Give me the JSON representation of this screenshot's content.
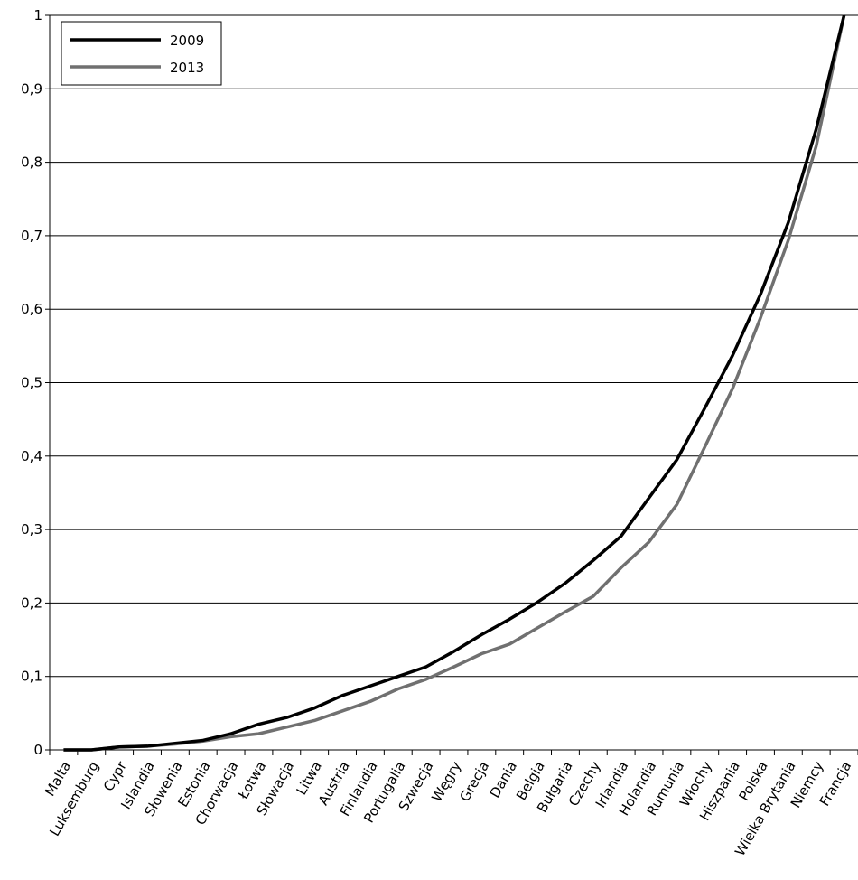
{
  "chart_data": {
    "type": "line",
    "categories": [
      "Malta",
      "Luksemburg",
      "Cypr",
      "Islandia",
      "Słowenia",
      "Estonia",
      "Chorwacja",
      "Łotwa",
      "Słowacja",
      "Litwa",
      "Austria",
      "Finlandia",
      "Portugalia",
      "Szwecja",
      "Węgry",
      "Grecja",
      "Dania",
      "Belgia",
      "Bułgaria",
      "Czechy",
      "Irlandia",
      "Holandia",
      "Rumunia",
      "Włochy",
      "Hiszpania",
      "Polska",
      "Wielka Brytania",
      "Niemcy",
      "Francja"
    ],
    "series": [
      {
        "name": "2009",
        "color": "#000000",
        "values": [
          0,
          0,
          0.004,
          0.005,
          0.009,
          0.013,
          0.022,
          0.035,
          0.044,
          0.057,
          0.074,
          0.087,
          0.1,
          0.113,
          0.134,
          0.157,
          0.178,
          0.201,
          0.227,
          0.258,
          0.291,
          0.343,
          0.395,
          0.465,
          0.537,
          0.62,
          0.718,
          0.845,
          1
        ]
      },
      {
        "name": "2013",
        "color": "#707070",
        "values": [
          0,
          0,
          0.004,
          0.005,
          0.008,
          0.012,
          0.018,
          0.022,
          0.031,
          0.04,
          0.053,
          0.066,
          0.083,
          0.096,
          0.113,
          0.131,
          0.144,
          0.166,
          0.188,
          0.209,
          0.248,
          0.283,
          0.334,
          0.412,
          0.492,
          0.588,
          0.694,
          0.822,
          1
        ]
      }
    ],
    "ylim": [
      0,
      1
    ],
    "yticks": [
      0,
      {
        "value": 0.1,
        "label": "0,1"
      },
      {
        "value": 0.2,
        "label": "0,2"
      },
      {
        "value": 0.3,
        "label": "0,3"
      },
      {
        "value": 0.4,
        "label": "0,4"
      },
      {
        "value": 0.5,
        "label": "0,5"
      },
      {
        "value": 0.6,
        "label": "0,6"
      },
      {
        "value": 0.7,
        "label": "0,7"
      },
      {
        "value": 0.8,
        "label": "0,8"
      },
      {
        "value": 0.9,
        "label": "0,9"
      },
      1
    ],
    "grid": true,
    "legend": "upper-left"
  }
}
